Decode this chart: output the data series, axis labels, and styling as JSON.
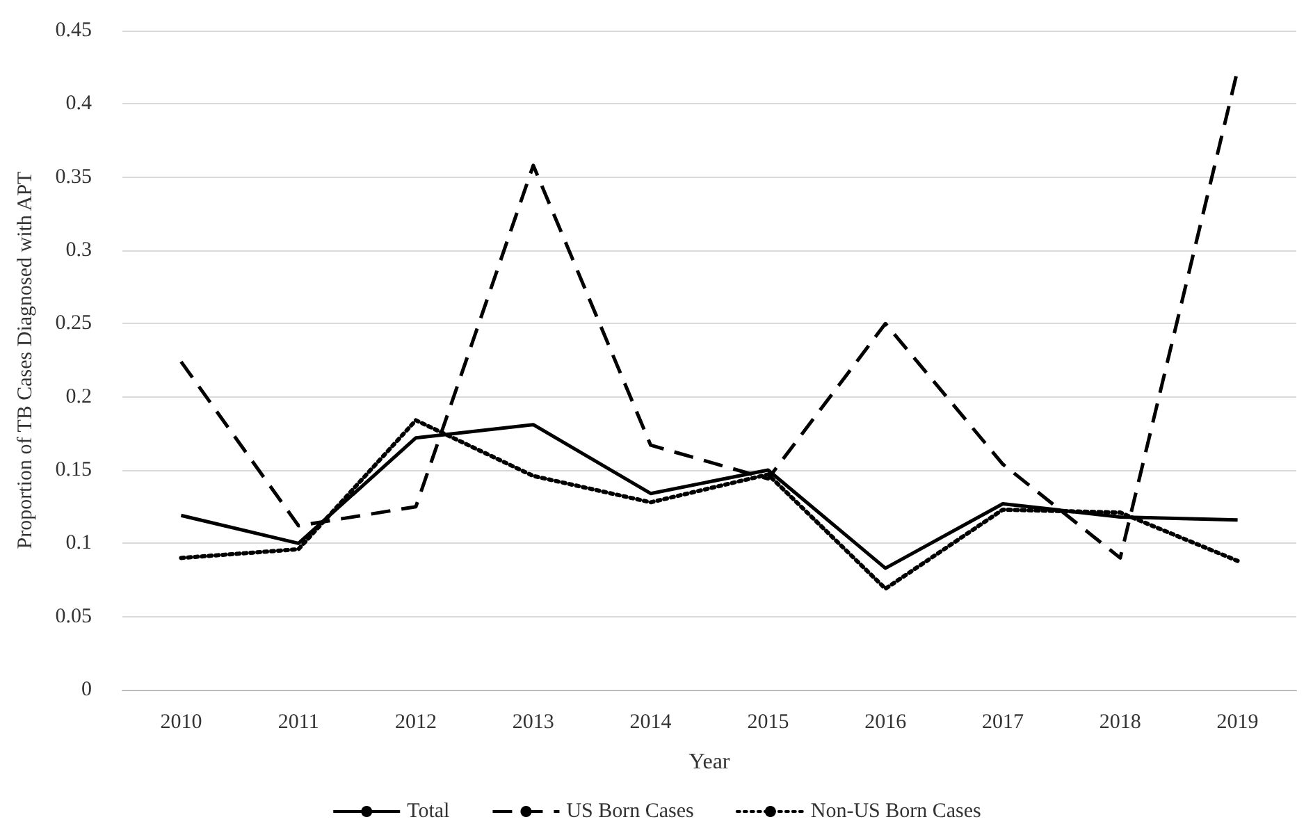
{
  "chart_data": {
    "type": "line",
    "xlabel": "Year",
    "ylabel": "Proportion of TB Cases Diagnosed with APT",
    "categories": [
      "2010",
      "2011",
      "2012",
      "2013",
      "2014",
      "2015",
      "2016",
      "2017",
      "2018",
      "2019"
    ],
    "series": [
      {
        "name": "Total",
        "color": "#000000",
        "line_style": "solid",
        "values": [
          0.119,
          0.1,
          0.172,
          0.181,
          0.134,
          0.15,
          0.083,
          0.127,
          0.118,
          0.116
        ]
      },
      {
        "name": "US Born Cases",
        "color": "#000000",
        "line_style": "dashed",
        "values": [
          0.224,
          0.112,
          0.125,
          0.358,
          0.167,
          0.144,
          0.25,
          0.154,
          0.09,
          0.423
        ]
      },
      {
        "name": "Non-US Born Cases",
        "color": "#000000",
        "line_style": "dotted",
        "values": [
          0.09,
          0.096,
          0.184,
          0.146,
          0.128,
          0.147,
          0.069,
          0.123,
          0.121,
          0.088
        ]
      }
    ],
    "ylim": [
      0,
      0.45
    ],
    "yticks": [
      0,
      0.05,
      0.1,
      0.15,
      0.2,
      0.25,
      0.3,
      0.35,
      0.4,
      0.45
    ],
    "grid": "y",
    "legend": "bottom",
    "marker": "none"
  }
}
